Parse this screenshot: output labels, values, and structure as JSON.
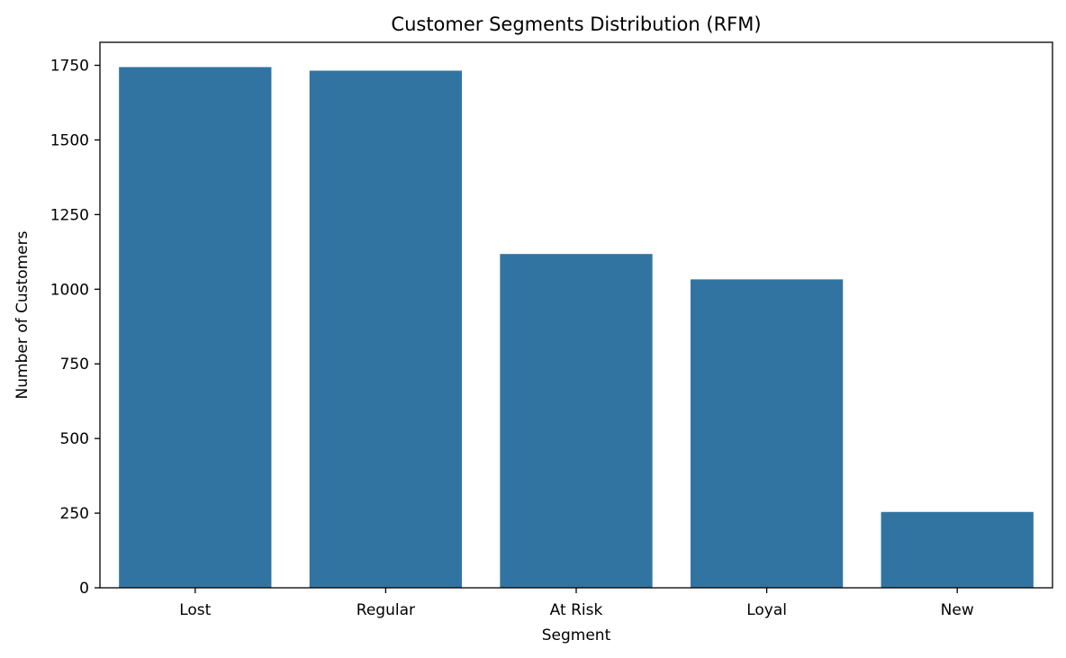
{
  "chart_data": {
    "type": "bar",
    "title": "Customer Segments Distribution (RFM)",
    "xlabel": "Segment",
    "ylabel": "Number of Customers",
    "categories": [
      "Lost",
      "Regular",
      "At Risk",
      "Loyal",
      "New"
    ],
    "values": [
      1744,
      1732,
      1118,
      1033,
      254
    ],
    "ylim": [
      0,
      1827
    ],
    "yticks": [
      0,
      250,
      500,
      750,
      1000,
      1250,
      1500,
      1750
    ],
    "grid": false,
    "legend": "none",
    "colors": {
      "bar": "#3274a1",
      "axis": "#000000",
      "background": "#ffffff"
    }
  }
}
